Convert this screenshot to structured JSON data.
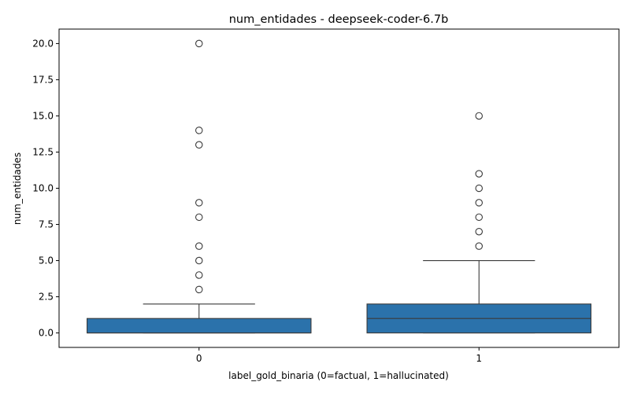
{
  "chart_data": {
    "type": "box",
    "title": "num_entidades - deepseek-coder-6.7b",
    "xlabel": "label_gold_binaria (0=factual, 1=hallucinated)",
    "ylabel": "num_entidades",
    "categories": [
      "0",
      "1"
    ],
    "ylim": [
      -1.0,
      21.0
    ],
    "yticks": [
      "0.0",
      "2.5",
      "5.0",
      "7.5",
      "10.0",
      "12.5",
      "15.0",
      "17.5",
      "20.0"
    ],
    "grid": false,
    "legend": "none",
    "box_color": "#2b72ab",
    "line_color": "#3a3a3a",
    "boxes": [
      {
        "category": "0",
        "min": 0,
        "q1": 0,
        "median": 0,
        "q3": 1,
        "max": 2,
        "outliers": [
          3,
          4,
          5,
          6,
          8,
          9,
          13,
          14,
          20
        ]
      },
      {
        "category": "1",
        "min": 0,
        "q1": 0,
        "median": 1,
        "q3": 2,
        "max": 5,
        "outliers": [
          6,
          7,
          8,
          9,
          10,
          11,
          15
        ]
      }
    ]
  }
}
